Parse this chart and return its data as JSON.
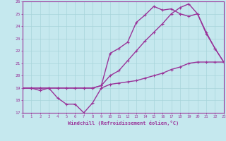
{
  "xlabel": "Windchill (Refroidissement éolien,°C)",
  "xlim": [
    0,
    23
  ],
  "ylim": [
    17,
    26
  ],
  "xticks": [
    0,
    1,
    2,
    3,
    4,
    5,
    6,
    7,
    8,
    9,
    10,
    11,
    12,
    13,
    14,
    15,
    16,
    17,
    18,
    19,
    20,
    21,
    22,
    23
  ],
  "yticks": [
    17,
    18,
    19,
    20,
    21,
    22,
    23,
    24,
    25,
    26
  ],
  "bg_color": "#c5e8ee",
  "line_color": "#993399",
  "grid_color": "#a8d4da",
  "line1_x": [
    0,
    1,
    2,
    3,
    4,
    5,
    6,
    7,
    8,
    9,
    10,
    11,
    12,
    13,
    14,
    15,
    16,
    17,
    18,
    19,
    20,
    21,
    22,
    23
  ],
  "line1_y": [
    19.0,
    19.0,
    18.8,
    19.0,
    18.2,
    17.7,
    17.7,
    17.0,
    17.8,
    19.0,
    19.3,
    19.4,
    19.5,
    19.6,
    19.8,
    20.0,
    20.2,
    20.5,
    20.7,
    21.0,
    21.1,
    21.1,
    21.1,
    21.1
  ],
  "line2_x": [
    0,
    1,
    2,
    3,
    4,
    5,
    6,
    7,
    8,
    9,
    10,
    11,
    12,
    13,
    14,
    15,
    16,
    17,
    18,
    19,
    20,
    21,
    22,
    23
  ],
  "line2_y": [
    19.0,
    19.0,
    19.0,
    19.0,
    19.0,
    19.0,
    19.0,
    19.0,
    19.0,
    19.2,
    21.8,
    22.2,
    22.7,
    24.3,
    24.9,
    25.6,
    25.3,
    25.4,
    25.0,
    24.8,
    25.0,
    23.5,
    22.2,
    21.1
  ],
  "line3_x": [
    0,
    1,
    2,
    3,
    4,
    5,
    6,
    7,
    8,
    9,
    10,
    11,
    12,
    13,
    14,
    15,
    16,
    17,
    18,
    19,
    20,
    21,
    22,
    23
  ],
  "line3_y": [
    19.0,
    19.0,
    19.0,
    19.0,
    19.0,
    19.0,
    19.0,
    19.0,
    19.0,
    19.2,
    20.0,
    20.4,
    21.2,
    22.0,
    22.8,
    23.5,
    24.2,
    25.0,
    25.5,
    25.8,
    25.0,
    23.4,
    22.2,
    21.1
  ],
  "marker": "+",
  "markersize": 3.5,
  "linewidth": 1.0
}
